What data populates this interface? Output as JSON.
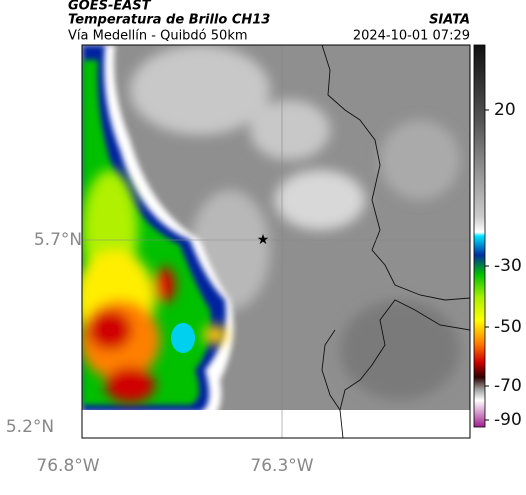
{
  "header": {
    "satellite": "GOES-EAST",
    "title": "Temperatura de Brillo CH13",
    "subtitle": "Vía Medellín - Quibdó 50km",
    "source": "SIATA",
    "timestamp": "2024-10-01 07:29"
  },
  "map": {
    "lat_labels": [
      "5.7°N",
      "5.2°N"
    ],
    "lon_labels": [
      "76.8°W",
      "76.3°W"
    ]
  },
  "colorbar": {
    "ticks": [
      20,
      -30,
      -50,
      -70,
      -90
    ]
  }
}
